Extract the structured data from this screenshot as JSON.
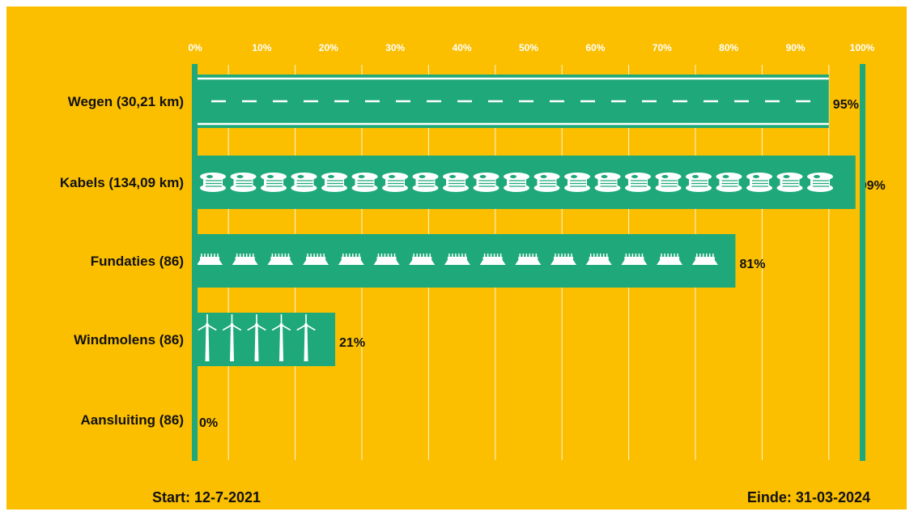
{
  "colors": {
    "background": "#FBBF00",
    "bar": "#1FA97A",
    "icon": "#ffffff",
    "tick_text": "#ffffff",
    "label_text": "#111111"
  },
  "chart_data": {
    "type": "bar",
    "orientation": "horizontal",
    "categories": [
      "Wegen (30,21 km)",
      "Kabels (134,09 km)",
      "Fundaties (86)",
      "Windmolens (86)",
      "Aansluiting (86)"
    ],
    "values": [
      95,
      99,
      81,
      21,
      0
    ],
    "value_labels": [
      "95%",
      "99%",
      "81%",
      "21%",
      "0%"
    ],
    "icons": [
      "road-icon",
      "cable-reel-icon",
      "foundation-icon",
      "wind-turbine-icon",
      ""
    ],
    "xticks": [
      "0%",
      "10%",
      "20%",
      "30%",
      "40%",
      "50%",
      "60%",
      "70%",
      "80%",
      "90%",
      "100%"
    ],
    "xlim": [
      0,
      100
    ],
    "grid": true,
    "title": "",
    "xlabel": "",
    "ylabel": ""
  },
  "footer": {
    "start": "Start: 12-7-2021",
    "end": "Einde: 31-03-2024"
  }
}
